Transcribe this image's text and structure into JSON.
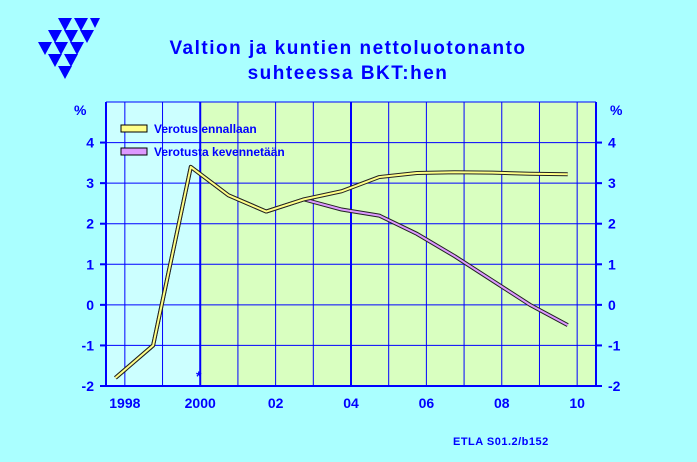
{
  "colors": {
    "page_background": "#aaffff",
    "forecast_background": "#d9ffc0",
    "history_background": "#ccffff",
    "axis_and_text": "#0000ff",
    "series_1": "#ffff88",
    "series_2": "#dd99ff",
    "logo": "#0000ff"
  },
  "logo": {
    "icon": "etla-triangles-logo-icon"
  },
  "chart_data": {
    "type": "line",
    "title": "Valtion ja kuntien nettoluotonanto",
    "subtitle": "suhteessa BKT:hen",
    "ylabel_left": "%",
    "ylabel_right": "%",
    "x_tick_labels": [
      "1998",
      "2000",
      "02",
      "04",
      "06",
      "08",
      "10"
    ],
    "x_tick_values": [
      1998,
      2000,
      2002,
      2004,
      2006,
      2008,
      2010
    ],
    "xlim": [
      1997.5,
      2010.5
    ],
    "ylim": [
      -2,
      5
    ],
    "y_tick_values": [
      -2,
      -1,
      0,
      1,
      2,
      3,
      4
    ],
    "y_tick_labels": [
      "-2",
      "-1",
      "0",
      "1",
      "2",
      "3",
      "4"
    ],
    "forecast_shading": {
      "history_end": 2000,
      "band_boundaries": [
        2000,
        2004,
        2010.5
      ]
    },
    "grid": true,
    "legend_position": "top-left",
    "annotation": "*",
    "series": [
      {
        "name": "Verotus ennallaan",
        "x": [
          1997.75,
          1998.75,
          1999.75,
          2000.75,
          2001.75,
          2002.75,
          2003.75,
          2004.75,
          2005.75,
          2006.75,
          2007.75,
          2008.75,
          2009.75
        ],
        "values": [
          -1.8,
          -1.0,
          3.4,
          2.7,
          2.3,
          2.6,
          2.8,
          3.15,
          3.25,
          3.27,
          3.26,
          3.23,
          3.22
        ]
      },
      {
        "name": "Verotusta kevennetään",
        "x": [
          1997.75,
          1998.75,
          1999.75,
          2000.75,
          2001.75,
          2002.75,
          2003.75,
          2004.75,
          2005.75,
          2006.75,
          2007.75,
          2008.75,
          2009.75
        ],
        "values": [
          -1.8,
          -1.0,
          3.4,
          2.7,
          2.3,
          2.6,
          2.35,
          2.2,
          1.75,
          1.2,
          0.6,
          0.0,
          -0.5
        ]
      }
    ]
  },
  "footer": {
    "source": "ETLA S01.2/b152"
  }
}
